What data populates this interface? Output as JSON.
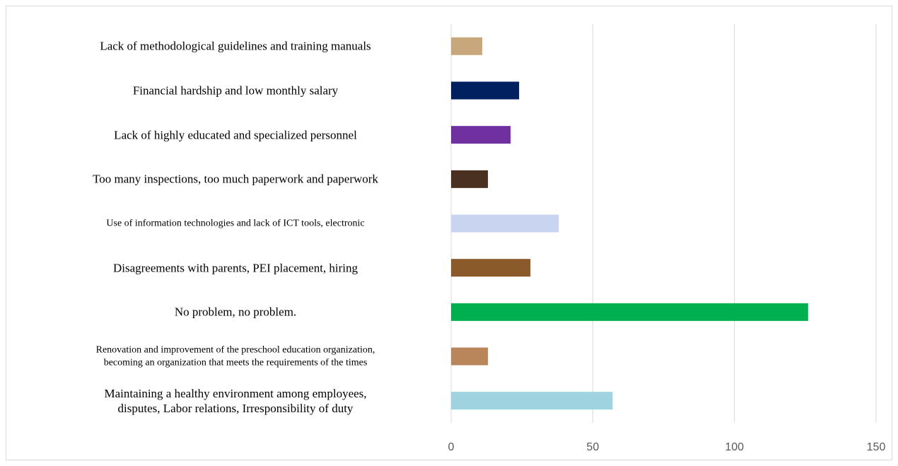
{
  "chart_data": {
    "type": "barh",
    "categories": [
      "Lack of methodological guidelines and training manuals",
      "Financial hardship and low monthly salary",
      "Lack of highly educated and specialized personnel",
      "Too many inspections, too much paperwork and paperwork",
      "Use of information technologies and lack of ICT tools, electronic",
      "Disagreements with parents, PEI  placement, hiring",
      "No problem, no problem.",
      "Renovation and improvement of the preschool education organization,\nbecoming an organization that meets the requirements of the times",
      "Maintaining a healthy environment among employees,\ndisputes, Labor relations, Irresponsibility of duty"
    ],
    "values": [
      11,
      24,
      21,
      13,
      38,
      28,
      126,
      13,
      57
    ],
    "colors": [
      "#c9a77c",
      "#002060",
      "#7030a0",
      "#4a3020",
      "#c8d4f0",
      "#8b5a2b",
      "#00b050",
      "#b8865a",
      "#9fd3e0"
    ],
    "xlim": [
      0,
      150
    ],
    "xticks": [
      0,
      50,
      100,
      150
    ],
    "grid": true
  }
}
